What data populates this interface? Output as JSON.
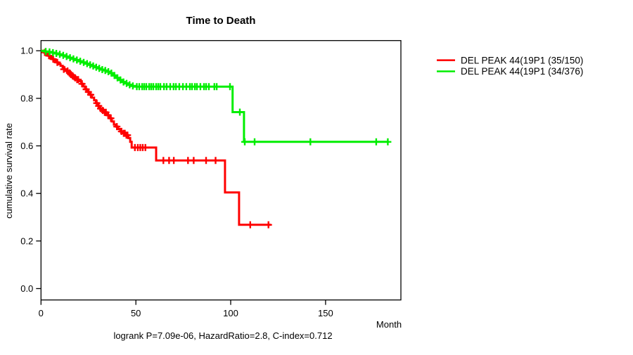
{
  "chart_data": {
    "type": "line",
    "variant": "kaplan-meier-step",
    "title": "Time to Death",
    "xlabel": "Month",
    "ylabel": "cumulative survival rate",
    "footer": "logrank P=7.09e-06, HazardRatio=2.8, C-index=0.712",
    "grid": false,
    "legend_position": "right-outside",
    "xlim": [
      0,
      189.7
    ],
    "ylim": [
      -0.048,
      1.043
    ],
    "x_ticks": [
      0,
      50,
      100,
      150
    ],
    "y_ticks": [
      0.0,
      0.2,
      0.4,
      0.6,
      0.8,
      1.0
    ],
    "series": [
      {
        "name": "DEL PEAK 44(19P1 (35/150)",
        "color": "#ff0000",
        "steps": [
          [
            0,
            1.0
          ],
          [
            1.5,
            0.993
          ],
          [
            2.6,
            0.986
          ],
          [
            3.7,
            0.979
          ],
          [
            4.8,
            0.972
          ],
          [
            5.9,
            0.965
          ],
          [
            7.0,
            0.958
          ],
          [
            8.1,
            0.951
          ],
          [
            9.2,
            0.944
          ],
          [
            10.3,
            0.937
          ],
          [
            11.4,
            0.93
          ],
          [
            12.4,
            0.922
          ],
          [
            13.4,
            0.915
          ],
          [
            14.4,
            0.907
          ],
          [
            15.4,
            0.9
          ],
          [
            16.4,
            0.893
          ],
          [
            17.4,
            0.886
          ],
          [
            18.6,
            0.879
          ],
          [
            20.0,
            0.872
          ],
          [
            21.2,
            0.861
          ],
          [
            22.3,
            0.85
          ],
          [
            23.3,
            0.838
          ],
          [
            24.3,
            0.827
          ],
          [
            25.5,
            0.815
          ],
          [
            26.8,
            0.803
          ],
          [
            28.0,
            0.792
          ],
          [
            29.0,
            0.78
          ],
          [
            30.0,
            0.768
          ],
          [
            31.0,
            0.757
          ],
          [
            32.0,
            0.749
          ],
          [
            33.2,
            0.741
          ],
          [
            34.8,
            0.729
          ],
          [
            36.2,
            0.716
          ],
          [
            37.3,
            0.703
          ],
          [
            38.4,
            0.69
          ],
          [
            39.5,
            0.681
          ],
          [
            40.6,
            0.671
          ],
          [
            41.8,
            0.661
          ],
          [
            43.2,
            0.653
          ],
          [
            44.6,
            0.645
          ],
          [
            46.0,
            0.633
          ],
          [
            47.0,
            0.617
          ],
          [
            47.8,
            0.593
          ],
          [
            60.7,
            0.539
          ],
          [
            97.0,
            0.404
          ],
          [
            104.4,
            0.268
          ]
        ],
        "end_month": 121.1,
        "censors": [
          [
            2.0,
            0.993
          ],
          [
            4.2,
            0.979
          ],
          [
            6.4,
            0.965
          ],
          [
            8.6,
            0.951
          ],
          [
            12.0,
            0.922
          ],
          [
            14.0,
            0.915
          ],
          [
            15.0,
            0.907
          ],
          [
            15.8,
            0.9
          ],
          [
            16.8,
            0.893
          ],
          [
            18.0,
            0.886
          ],
          [
            19.0,
            0.879
          ],
          [
            19.6,
            0.879
          ],
          [
            21.6,
            0.861
          ],
          [
            23.8,
            0.838
          ],
          [
            25.0,
            0.827
          ],
          [
            26.2,
            0.815
          ],
          [
            29.4,
            0.78
          ],
          [
            30.4,
            0.768
          ],
          [
            31.4,
            0.757
          ],
          [
            32.6,
            0.749
          ],
          [
            33.6,
            0.741
          ],
          [
            34.2,
            0.741
          ],
          [
            35.4,
            0.729
          ],
          [
            36.8,
            0.716
          ],
          [
            40.0,
            0.681
          ],
          [
            42.4,
            0.661
          ],
          [
            43.6,
            0.653
          ],
          [
            44.2,
            0.653
          ],
          [
            45.0,
            0.645
          ],
          [
            45.6,
            0.645
          ],
          [
            49.5,
            0.593
          ],
          [
            51.0,
            0.593
          ],
          [
            52.3,
            0.593
          ],
          [
            53.6,
            0.593
          ],
          [
            55.0,
            0.593
          ],
          [
            64.5,
            0.539
          ],
          [
            67.5,
            0.539
          ],
          [
            70.0,
            0.539
          ],
          [
            77.5,
            0.539
          ],
          [
            80.5,
            0.539
          ],
          [
            87.0,
            0.539
          ],
          [
            92.0,
            0.539
          ],
          [
            110.3,
            0.268
          ],
          [
            119.9,
            0.268
          ]
        ]
      },
      {
        "name": "DEL PEAK 44(19P1 (34/376)",
        "color": "#00ee00",
        "steps": [
          [
            0,
            1.0
          ],
          [
            1.8,
            0.997
          ],
          [
            3.6,
            0.995
          ],
          [
            5.4,
            0.992
          ],
          [
            7.2,
            0.989
          ],
          [
            9.0,
            0.985
          ],
          [
            10.8,
            0.981
          ],
          [
            12.6,
            0.976
          ],
          [
            14.4,
            0.971
          ],
          [
            16.2,
            0.966
          ],
          [
            18.0,
            0.961
          ],
          [
            19.8,
            0.956
          ],
          [
            21.6,
            0.951
          ],
          [
            23.4,
            0.946
          ],
          [
            25.2,
            0.941
          ],
          [
            26.8,
            0.936
          ],
          [
            28.4,
            0.931
          ],
          [
            30.0,
            0.926
          ],
          [
            31.6,
            0.921
          ],
          [
            33.2,
            0.917
          ],
          [
            34.8,
            0.912
          ],
          [
            36.4,
            0.906
          ],
          [
            38.0,
            0.896
          ],
          [
            39.6,
            0.886
          ],
          [
            41.2,
            0.877
          ],
          [
            42.8,
            0.869
          ],
          [
            44.4,
            0.863
          ],
          [
            46.0,
            0.857
          ],
          [
            47.5,
            0.852
          ],
          [
            49.5,
            0.849
          ],
          [
            101.0,
            0.742
          ],
          [
            107.0,
            0.617
          ]
        ],
        "end_month": 183.3,
        "censors": [
          [
            2.5,
            0.997
          ],
          [
            4.5,
            0.995
          ],
          [
            6.3,
            0.992
          ],
          [
            8.1,
            0.989
          ],
          [
            9.9,
            0.985
          ],
          [
            11.7,
            0.981
          ],
          [
            13.5,
            0.976
          ],
          [
            15.3,
            0.971
          ],
          [
            17.1,
            0.966
          ],
          [
            18.9,
            0.961
          ],
          [
            20.7,
            0.956
          ],
          [
            22.5,
            0.951
          ],
          [
            24.3,
            0.946
          ],
          [
            25.9,
            0.941
          ],
          [
            27.5,
            0.936
          ],
          [
            29.1,
            0.931
          ],
          [
            30.7,
            0.926
          ],
          [
            32.3,
            0.921
          ],
          [
            33.9,
            0.917
          ],
          [
            35.5,
            0.912
          ],
          [
            37.1,
            0.906
          ],
          [
            38.7,
            0.896
          ],
          [
            40.3,
            0.886
          ],
          [
            41.9,
            0.877
          ],
          [
            43.5,
            0.869
          ],
          [
            45.1,
            0.863
          ],
          [
            46.7,
            0.857
          ],
          [
            48.4,
            0.852
          ],
          [
            50.5,
            0.849
          ],
          [
            51.8,
            0.849
          ],
          [
            53.3,
            0.849
          ],
          [
            54.4,
            0.849
          ],
          [
            55.5,
            0.849
          ],
          [
            57.0,
            0.849
          ],
          [
            58.1,
            0.849
          ],
          [
            59.2,
            0.849
          ],
          [
            60.7,
            0.849
          ],
          [
            61.8,
            0.849
          ],
          [
            62.9,
            0.849
          ],
          [
            64.8,
            0.849
          ],
          [
            66.2,
            0.849
          ],
          [
            68.1,
            0.849
          ],
          [
            69.9,
            0.849
          ],
          [
            71.1,
            0.849
          ],
          [
            72.9,
            0.849
          ],
          [
            74.8,
            0.849
          ],
          [
            76.6,
            0.849
          ],
          [
            78.5,
            0.849
          ],
          [
            79.6,
            0.849
          ],
          [
            81.1,
            0.849
          ],
          [
            82.2,
            0.849
          ],
          [
            84.0,
            0.849
          ],
          [
            85.9,
            0.849
          ],
          [
            87.0,
            0.849
          ],
          [
            88.5,
            0.849
          ],
          [
            91.4,
            0.849
          ],
          [
            92.6,
            0.849
          ],
          [
            99.6,
            0.849
          ],
          [
            104.8,
            0.742
          ],
          [
            107.4,
            0.617
          ],
          [
            112.6,
            0.617
          ],
          [
            142.0,
            0.617
          ],
          [
            176.7,
            0.617
          ],
          [
            182.8,
            0.617
          ]
        ]
      }
    ]
  }
}
